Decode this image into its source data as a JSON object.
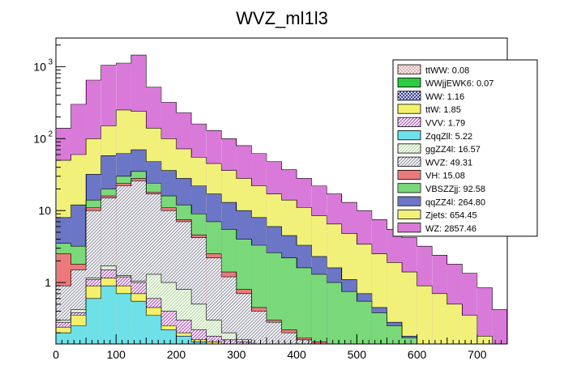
{
  "chart_data": {
    "type": "bar",
    "title": "WVZ_ml1l3",
    "xlabel": "",
    "ylabel": "",
    "xlim": [
      0,
      750
    ],
    "ylim": [
      0.14,
      2500
    ],
    "log_y": true,
    "bin_width": 25,
    "x_ticks": [
      0,
      100,
      200,
      300,
      400,
      500,
      600,
      700
    ],
    "y_tick_labels": [
      {
        "value": 1,
        "base": "1",
        "exp": ""
      },
      {
        "value": 10,
        "base": "10",
        "exp": ""
      },
      {
        "value": 100,
        "base": "10",
        "exp": "2"
      },
      {
        "value": 1000,
        "base": "10",
        "exp": "3"
      }
    ],
    "stacked": true,
    "legend_position": "top-right",
    "series": [
      {
        "name": "ttWW: 0.08",
        "color": "#d9a5a5",
        "pattern": "cross"
      },
      {
        "name": "WWjjEWK6: 0.07",
        "color": "#2ecc40",
        "pattern": "solid"
      },
      {
        "name": "WW: 1.16",
        "color": "#1f2a8c",
        "pattern": "cross"
      },
      {
        "name": "ttW: 1.85",
        "color": "#f4f06a",
        "pattern": "solid"
      },
      {
        "name": "VVV: 1.79",
        "color": "#b040c0",
        "pattern": "diag"
      },
      {
        "name": "ZqqZll: 5.22",
        "color": "#6ee0e8",
        "pattern": "solid"
      },
      {
        "name": "ggZZ4l: 16.57",
        "color": "#a8d890",
        "pattern": "diag"
      },
      {
        "name": "WVZ: 49.31",
        "color": "#8c8ca0",
        "pattern": "diag"
      },
      {
        "name": "VH: 15.08",
        "color": "#e02020",
        "pattern": "vert"
      },
      {
        "name": "VBSZZjj: 92.58",
        "color": "#20c020",
        "pattern": "vert"
      },
      {
        "name": "qqZZ4l: 264.80",
        "color": "#0a1aa0",
        "pattern": "vert"
      },
      {
        "name": "Zjets: 654.45",
        "color": "#e8e820",
        "pattern": "vert"
      },
      {
        "name": "WZ: 2857.46",
        "color": "#c020c0",
        "pattern": "vert"
      }
    ],
    "stack_layers": [
      {
        "name": "ZqqZll",
        "color": "#6ee0e8",
        "pattern": "solid",
        "tops": [
          0.2,
          0.25,
          0.6,
          0.9,
          0.7,
          0.55,
          0.35,
          0.22,
          0.18,
          0.15,
          0.14,
          0.14,
          0.14,
          0.14,
          0.14,
          0.14,
          0.14,
          0.14,
          0.14,
          0.14,
          0.14,
          0.14,
          0.14,
          0.14,
          0.14,
          0.14,
          0.14,
          0.14,
          0.14,
          0.14
        ]
      },
      {
        "name": "ttW",
        "color": "#f4f06a",
        "pattern": "solid",
        "tops": [
          0.24,
          0.35,
          0.9,
          1.15,
          0.9,
          0.7,
          0.45,
          0.25,
          0.2,
          0.16,
          0.15,
          0.14,
          0.14,
          0.14,
          0.14,
          0.14,
          0.14,
          0.14,
          0.14,
          0.14,
          0.14,
          0.14,
          0.14,
          0.14,
          0.14,
          0.14,
          0.14,
          0.14,
          0.14,
          0.14
        ]
      },
      {
        "name": "VVV",
        "color": "#b040c0",
        "pattern": "diag",
        "tops": [
          0.28,
          0.38,
          1.1,
          1.5,
          1.2,
          1.0,
          0.6,
          0.4,
          0.3,
          0.22,
          0.18,
          0.16,
          0.15,
          0.14,
          0.14,
          0.14,
          0.14,
          0.14,
          0.14,
          0.14,
          0.14,
          0.14,
          0.14,
          0.14,
          0.14,
          0.14,
          0.14,
          0.14,
          0.14,
          0.14
        ]
      },
      {
        "name": "ggZZ4l",
        "color": "#a8d890",
        "pattern": "diag",
        "tops": [
          0.3,
          0.42,
          1.15,
          1.7,
          1.25,
          1.05,
          1.3,
          1.0,
          0.8,
          0.5,
          0.3,
          0.2,
          0.16,
          0.14,
          0.14,
          0.14,
          0.14,
          0.14,
          0.14,
          0.14,
          0.14,
          0.14,
          0.14,
          0.14,
          0.14,
          0.14,
          0.14,
          0.14,
          0.14,
          0.14
        ]
      },
      {
        "name": "WVZ",
        "color": "#8c8ca0",
        "pattern": "diag",
        "tops": [
          0.9,
          1.5,
          10,
          15,
          22,
          26,
          17,
          10,
          7,
          4.2,
          2.2,
          1.2,
          0.7,
          0.4,
          0.28,
          0.2,
          0.16,
          0.14,
          0.14,
          0.14,
          0.14,
          0.14,
          0.14,
          0.14,
          0.14,
          0.14,
          0.14,
          0.14,
          0.14,
          0.14
        ]
      },
      {
        "name": "VH",
        "color": "#e02020",
        "pattern": "vert",
        "tops": [
          2.5,
          1.8,
          11,
          16,
          24,
          28,
          18,
          11,
          7.5,
          4.6,
          2.5,
          1.4,
          0.8,
          0.45,
          0.3,
          0.22,
          0.17,
          0.15,
          0.14,
          0.14,
          0.14,
          0.14,
          0.14,
          0.14,
          0.14,
          0.14,
          0.14,
          0.14,
          0.14,
          0.14
        ]
      },
      {
        "name": "VBSZZjj",
        "color": "#20c020",
        "pattern": "vert",
        "tops": [
          3.5,
          3.2,
          14,
          20,
          30,
          35,
          24,
          16,
          12,
          9,
          7,
          5.5,
          4,
          3.3,
          2.6,
          2.2,
          1.6,
          1.3,
          1.0,
          0.75,
          0.55,
          0.38,
          0.25,
          0.17,
          0.14,
          0.14,
          0.14,
          0.14,
          0.14,
          0.14
        ]
      },
      {
        "name": "qqZZ4l",
        "color": "#0a1aa0",
        "pattern": "vert",
        "tops": [
          8,
          12,
          32,
          58,
          62,
          70,
          48,
          36,
          28,
          22,
          17,
          13,
          10,
          8,
          6,
          4.5,
          3.3,
          2.3,
          1.6,
          1.1,
          0.7,
          0.45,
          0.28,
          0.18,
          0.14,
          0.14,
          0.14,
          0.14,
          0.14,
          0.14
        ]
      },
      {
        "name": "Zjets",
        "color": "#e8e820",
        "pattern": "vert",
        "tops": [
          50,
          60,
          100,
          150,
          250,
          240,
          140,
          100,
          72,
          55,
          45,
          36,
          28,
          22,
          17,
          14,
          11,
          8.5,
          6.5,
          4.8,
          3.4,
          2.5,
          1.9,
          1.4,
          0.9,
          0.7,
          0.5,
          0.35,
          0.18,
          0.14
        ]
      },
      {
        "name": "WZ",
        "color": "#c020c0",
        "pattern": "vert",
        "tops": [
          140,
          300,
          650,
          1050,
          1120,
          1450,
          520,
          320,
          230,
          160,
          130,
          100,
          80,
          62,
          48,
          37,
          28,
          22,
          17,
          13,
          10,
          7.5,
          5.5,
          4.2,
          3.2,
          2.4,
          1.8,
          1.35,
          0.85,
          0.42
        ]
      }
    ]
  }
}
